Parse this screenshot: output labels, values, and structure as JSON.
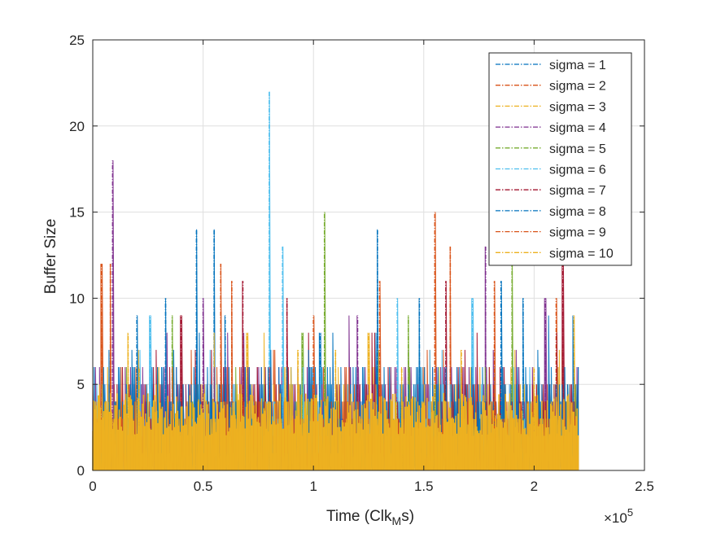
{
  "chart_data": {
    "type": "line",
    "title": "",
    "xlabel_main": "Time (Clk",
    "xlabel_sub": "M",
    "xlabel_end": "s)",
    "ylabel": "Buffer Size",
    "xlim": [
      0,
      2.5
    ],
    "ylim": [
      0,
      25
    ],
    "x_exponent_label": "×10",
    "x_exponent_power": "5",
    "x_tick_values": [
      0,
      0.5,
      1,
      1.5,
      2,
      2.5
    ],
    "x_tick_labels": [
      "0",
      "0.5",
      "1",
      "1.5",
      "2",
      "2.5"
    ],
    "y_tick_values": [
      0,
      5,
      10,
      15,
      20,
      25
    ],
    "y_tick_labels": [
      "0",
      "5",
      "10",
      "15",
      "20",
      "25"
    ],
    "grid": true,
    "legend_position": "top-right",
    "x_max": 2.2,
    "series": [
      {
        "name": "sigma = 1",
        "color": "#0072BD",
        "peaks": [
          [
            0.47,
            14
          ],
          [
            0.55,
            14
          ],
          [
            1.29,
            14
          ],
          [
            1.03,
            8
          ],
          [
            1.95,
            10
          ]
        ]
      },
      {
        "name": "sigma = 2",
        "color": "#D95319",
        "peaks": [
          [
            0.04,
            12
          ],
          [
            1.55,
            15
          ],
          [
            1.62,
            13
          ],
          [
            0.63,
            11
          ],
          [
            2.1,
            10
          ]
        ]
      },
      {
        "name": "sigma = 3",
        "color": "#EDB120",
        "peaks": [
          [
            0.16,
            8
          ],
          [
            0.7,
            8
          ],
          [
            1.25,
            8
          ],
          [
            2.18,
            9
          ],
          [
            1.1,
            7
          ]
        ]
      },
      {
        "name": "sigma = 4",
        "color": "#7E2F8E",
        "peaks": [
          [
            0.09,
            18
          ],
          [
            1.78,
            13
          ],
          [
            0.5,
            10
          ],
          [
            1.2,
            9
          ],
          [
            2.05,
            10
          ]
        ]
      },
      {
        "name": "sigma = 5",
        "color": "#77AC30",
        "peaks": [
          [
            1.05,
            15
          ],
          [
            1.9,
            13
          ],
          [
            0.36,
            9
          ],
          [
            1.43,
            9
          ],
          [
            0.95,
            8
          ]
        ]
      },
      {
        "name": "sigma = 6",
        "color": "#4DBEEE",
        "peaks": [
          [
            0.8,
            22
          ],
          [
            0.86,
            13
          ],
          [
            1.38,
            10
          ],
          [
            0.26,
            9
          ],
          [
            1.72,
            10
          ]
        ]
      },
      {
        "name": "sigma = 7",
        "color": "#A2142F",
        "peaks": [
          [
            0.88,
            10
          ],
          [
            1.6,
            11
          ],
          [
            0.68,
            11
          ],
          [
            2.13,
            12
          ],
          [
            0.4,
            9
          ]
        ]
      },
      {
        "name": "sigma = 8",
        "color": "#0072BD",
        "peaks": [
          [
            0.33,
            10
          ],
          [
            1.48,
            10
          ],
          [
            0.2,
            9
          ],
          [
            1.85,
            11
          ],
          [
            0.6,
            9
          ]
        ]
      },
      {
        "name": "sigma = 9",
        "color": "#D95319",
        "peaks": [
          [
            0.08,
            12
          ],
          [
            0.58,
            12
          ],
          [
            1.3,
            11
          ],
          [
            1.82,
            11
          ],
          [
            1.0,
            9
          ]
        ]
      },
      {
        "name": "sigma = 10",
        "color": "#EDB120",
        "peaks": [
          [
            0.21,
            6
          ],
          [
            0.93,
            7
          ],
          [
            1.67,
            7
          ],
          [
            1.4,
            6
          ],
          [
            2.0,
            6
          ]
        ]
      }
    ]
  }
}
